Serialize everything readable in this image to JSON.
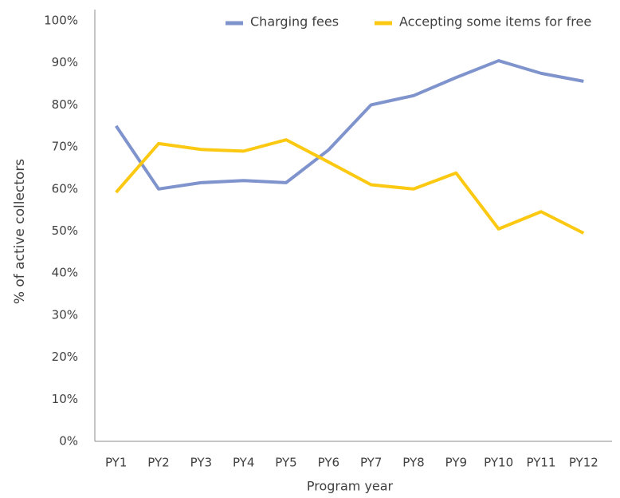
{
  "chart_data": {
    "type": "line",
    "x_label": "Program year",
    "y_label": "% of active collectors",
    "categories": [
      "PY1",
      "PY2",
      "PY3",
      "PY4",
      "PY5",
      "PY6",
      "PY7",
      "PY8",
      "PY9",
      "PY10",
      "PY11",
      "PY12"
    ],
    "series": [
      {
        "name": "Charging fees",
        "color": "#7f93cc",
        "values": [
          75,
          60,
          61.5,
          62,
          61.5,
          69.3,
          80,
          82.2,
          86.5,
          90.5,
          87.5,
          85.6
        ]
      },
      {
        "name": "Accepting some items for free",
        "color": "#fcc912",
        "values": [
          59.2,
          70.8,
          69.4,
          69,
          71.7,
          66.4,
          61,
          60,
          63.8,
          50.5,
          54.6,
          49.5
        ]
      }
    ],
    "ylim": [
      0,
      100
    ],
    "yticks": [
      {
        "value": 0,
        "label": "0%"
      },
      {
        "value": 10,
        "label": "10%"
      },
      {
        "value": 20,
        "label": "20%"
      },
      {
        "value": 30,
        "label": "30%"
      },
      {
        "value": 40,
        "label": "40%"
      },
      {
        "value": 50,
        "label": "50%"
      },
      {
        "value": 60,
        "label": "60%"
      },
      {
        "value": 70,
        "label": "70%"
      },
      {
        "value": 80,
        "label": "80%"
      },
      {
        "value": 90,
        "label": "90%"
      },
      {
        "value": 100,
        "label": "100%"
      }
    ],
    "legend": "top-right"
  }
}
